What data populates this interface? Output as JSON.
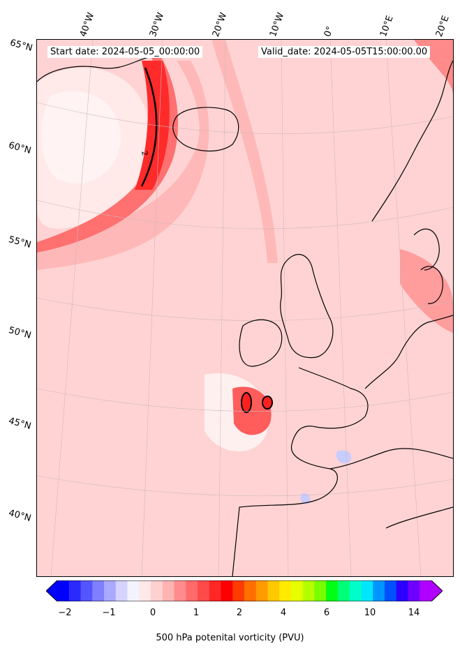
{
  "header": {
    "start_date": "Start date: 2024-05-05_00:00:00",
    "valid_date": "Valid_date: 2024-05-05T15:00:00.00"
  },
  "lon_labels": [
    "40°W",
    "30°W",
    "20°W",
    "10°W",
    "0°",
    "10°E",
    "20°E"
  ],
  "lat_labels": [
    "65°N",
    "60°N",
    "55°N",
    "50°N",
    "45°N",
    "40°N"
  ],
  "contour_label": "2",
  "colorbar": {
    "title": "500 hPa potenital vorticity (PVU)",
    "ticks": [
      "−2",
      "−1",
      "0",
      "1",
      "2",
      "4",
      "6",
      "10",
      "14"
    ],
    "colors": [
      "#0000ff",
      "#2a2aff",
      "#5555ff",
      "#7f7fff",
      "#a9a9ff",
      "#d4d4ff",
      "#f3f3ff",
      "#ffe8e8",
      "#ffd0d0",
      "#ffb4b4",
      "#ff8c8c",
      "#ff6a6a",
      "#ff4a4a",
      "#ff2626",
      "#ff0000",
      "#ff3c00",
      "#ff7000",
      "#ff9a00",
      "#ffc800",
      "#ffea00",
      "#e6ff00",
      "#b4ff00",
      "#78ff00",
      "#00ff14",
      "#00ff78",
      "#00ffc8",
      "#00e6ff",
      "#0096ff",
      "#0050ff",
      "#2a00ff",
      "#6e00ff",
      "#b000ff"
    ]
  }
}
